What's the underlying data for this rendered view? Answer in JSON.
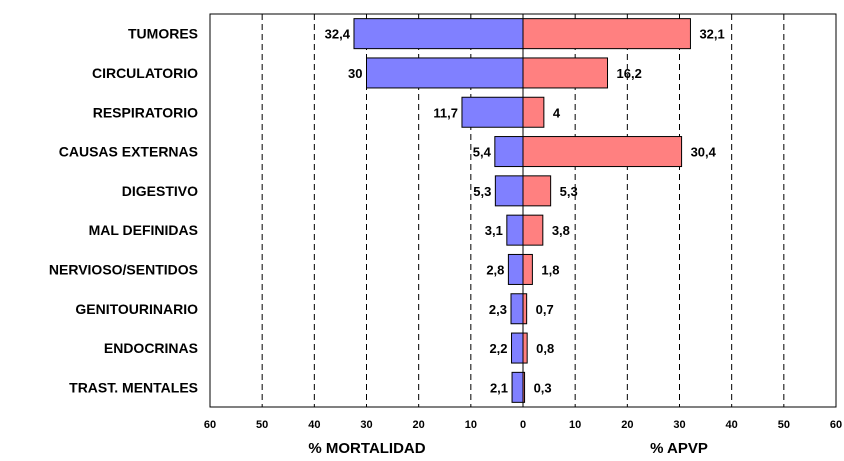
{
  "chart_data": {
    "type": "bar",
    "orientation": "horizontal",
    "layout": "butterfly",
    "categories": [
      "TUMORES",
      "CIRCULATORIO",
      "RESPIRATORIO",
      "CAUSAS EXTERNAS",
      "DIGESTIVO",
      "MAL DEFINIDAS",
      "NERVIOSO/SENTIDOS",
      "GENITOURINARIO",
      "ENDOCRINAS",
      "TRAST. MENTALES"
    ],
    "series": [
      {
        "name": "% MORTALIDAD",
        "side": "left",
        "color": "#8080ff",
        "values": [
          32.4,
          30,
          11.7,
          5.4,
          5.3,
          3.1,
          2.8,
          2.3,
          2.2,
          2.1
        ],
        "labels": [
          "32,4",
          "30",
          "11,7",
          "5,4",
          "5,3",
          "3,1",
          "2,8",
          "2,3",
          "2,2",
          "2,1"
        ]
      },
      {
        "name": "% APVP",
        "side": "right",
        "color": "#ff8080",
        "values": [
          32.1,
          16.2,
          4,
          30.4,
          5.3,
          3.8,
          1.8,
          0.7,
          0.8,
          0.3
        ],
        "labels": [
          "32,1",
          "16,2",
          "4",
          "30,4",
          "5,3",
          "3,8",
          "1,8",
          "0,7",
          "0,8",
          "0,3"
        ]
      }
    ],
    "xlim": [
      0,
      60
    ],
    "ticks": [
      60,
      50,
      40,
      30,
      20,
      10,
      0,
      10,
      20,
      30,
      40,
      50,
      60
    ],
    "grid": true,
    "grid_style": "dashed-vertical",
    "xlabel_left": "% MORTALIDAD",
    "xlabel_right": "% APVP"
  }
}
